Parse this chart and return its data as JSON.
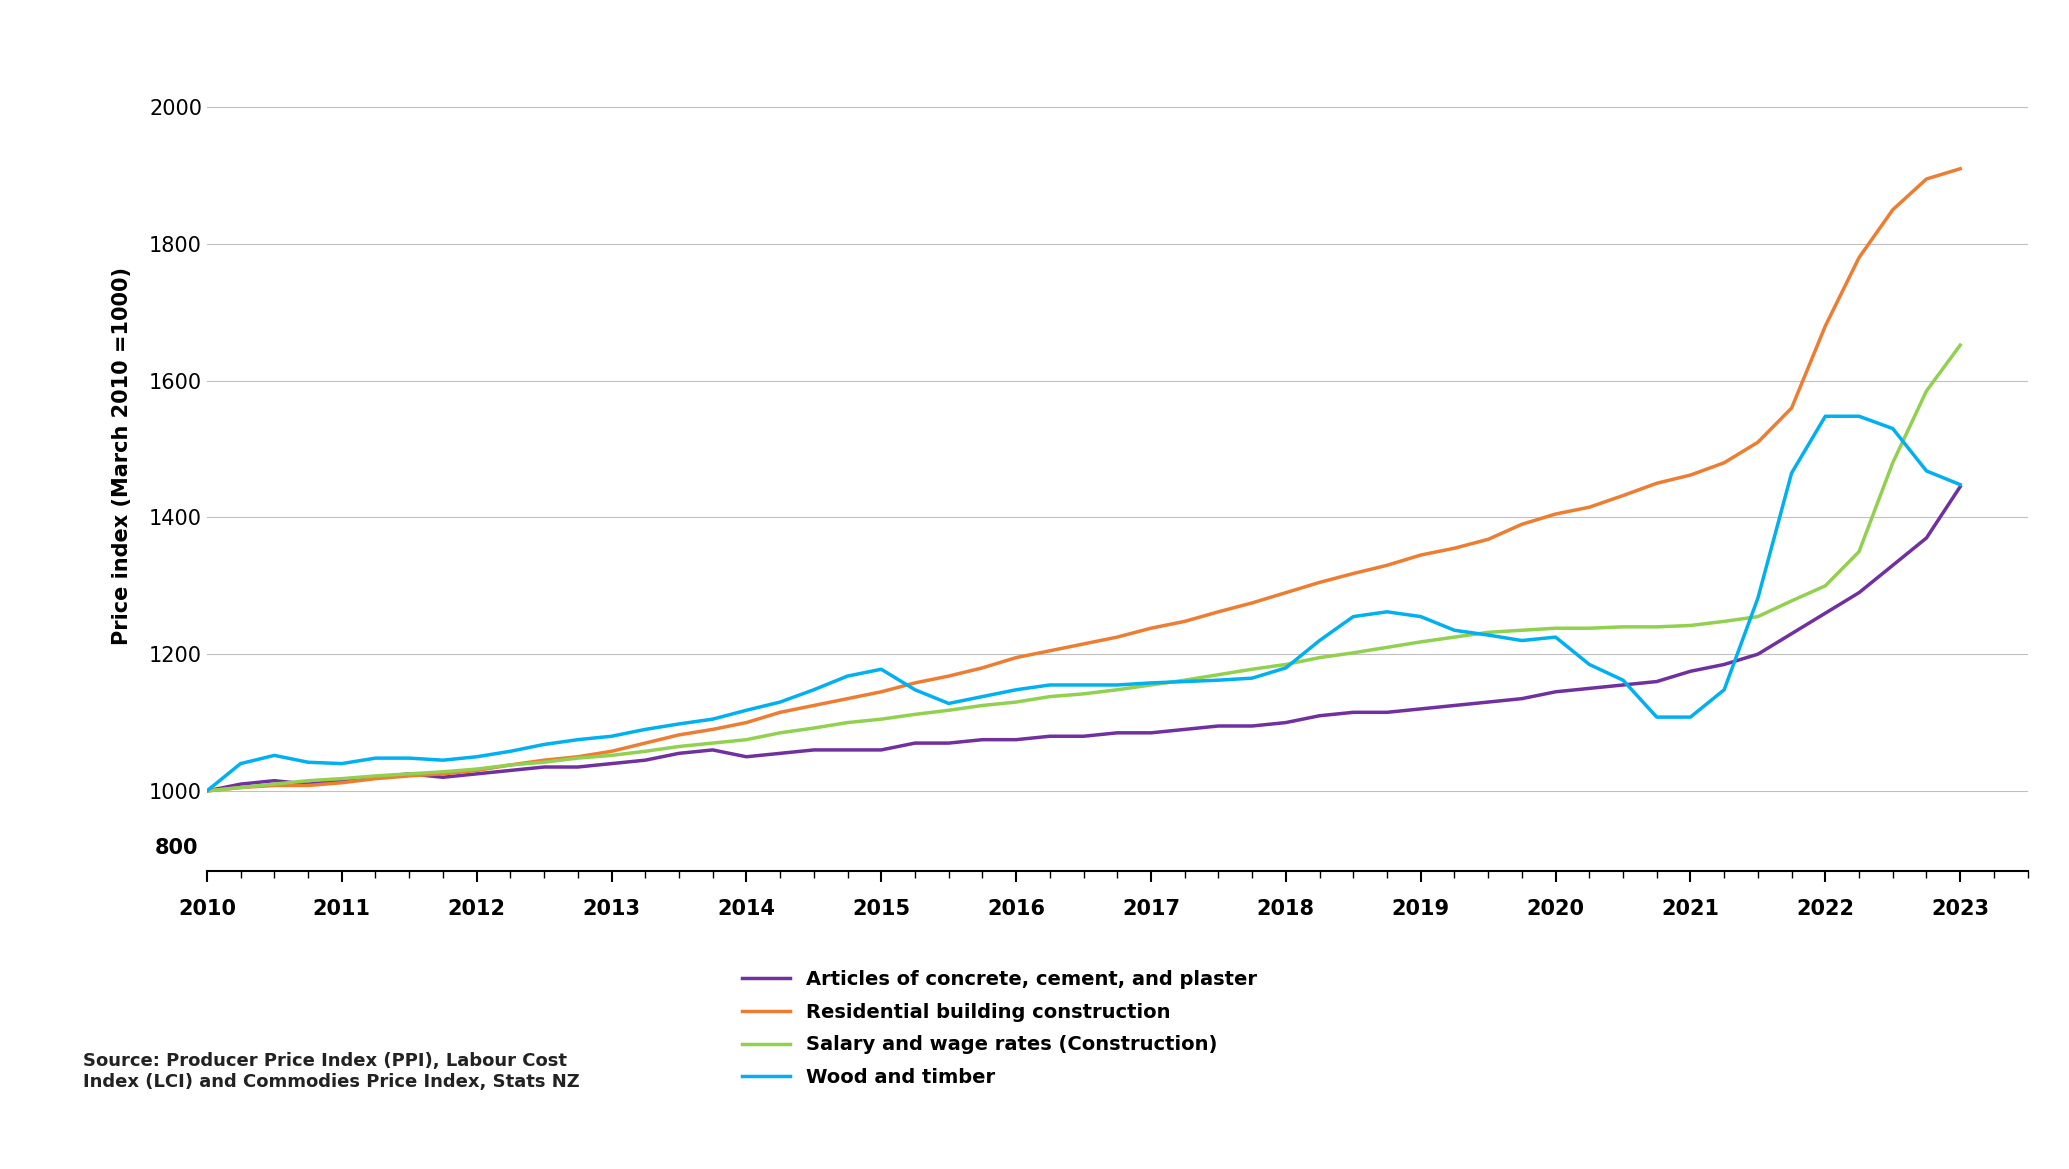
{
  "ylabel": "Price index (March 2010 =1000)",
  "source_text": "Source: Producer Price Index (PPI), Labour Cost\nIndex (LCI) and Commodies Price Index, Stats NZ",
  "ylim": [
    800,
    2000
  ],
  "plot_ylim": [
    950,
    2000
  ],
  "yticks_in_plot": [
    1000,
    1200,
    1400,
    1600,
    1800,
    2000
  ],
  "ytick_800": 800,
  "background_color": "#ffffff",
  "grid_color": "#c0c0c0",
  "series": {
    "Articles of concrete, cement, and plaster": {
      "color": "#7030a0",
      "data": {
        "2010-03": 1000,
        "2010-06": 1010,
        "2010-09": 1015,
        "2010-12": 1010,
        "2011-03": 1015,
        "2011-06": 1020,
        "2011-09": 1025,
        "2011-12": 1020,
        "2012-03": 1025,
        "2012-06": 1030,
        "2012-09": 1035,
        "2012-12": 1035,
        "2013-03": 1040,
        "2013-06": 1045,
        "2013-09": 1055,
        "2013-12": 1060,
        "2014-03": 1050,
        "2014-06": 1055,
        "2014-09": 1060,
        "2014-12": 1060,
        "2015-03": 1060,
        "2015-06": 1070,
        "2015-09": 1070,
        "2015-12": 1075,
        "2016-03": 1075,
        "2016-06": 1080,
        "2016-09": 1080,
        "2016-12": 1085,
        "2017-03": 1085,
        "2017-06": 1090,
        "2017-09": 1095,
        "2017-12": 1095,
        "2018-03": 1100,
        "2018-06": 1110,
        "2018-09": 1115,
        "2018-12": 1115,
        "2019-03": 1120,
        "2019-06": 1125,
        "2019-09": 1130,
        "2019-12": 1135,
        "2020-03": 1145,
        "2020-06": 1150,
        "2020-09": 1155,
        "2020-12": 1160,
        "2021-03": 1175,
        "2021-06": 1185,
        "2021-09": 1200,
        "2021-12": 1230,
        "2022-03": 1260,
        "2022-06": 1290,
        "2022-09": 1330,
        "2022-12": 1370,
        "2023-03": 1445
      }
    },
    "Residential building construction": {
      "color": "#ed7d31",
      "data": {
        "2010-03": 1000,
        "2010-06": 1005,
        "2010-09": 1008,
        "2010-12": 1008,
        "2011-03": 1012,
        "2011-06": 1018,
        "2011-09": 1022,
        "2011-12": 1025,
        "2012-03": 1030,
        "2012-06": 1038,
        "2012-09": 1045,
        "2012-12": 1050,
        "2013-03": 1058,
        "2013-06": 1070,
        "2013-09": 1082,
        "2013-12": 1090,
        "2014-03": 1100,
        "2014-06": 1115,
        "2014-09": 1125,
        "2014-12": 1135,
        "2015-03": 1145,
        "2015-06": 1158,
        "2015-09": 1168,
        "2015-12": 1180,
        "2016-03": 1195,
        "2016-06": 1205,
        "2016-09": 1215,
        "2016-12": 1225,
        "2017-03": 1238,
        "2017-06": 1248,
        "2017-09": 1262,
        "2017-12": 1275,
        "2018-03": 1290,
        "2018-06": 1305,
        "2018-09": 1318,
        "2018-12": 1330,
        "2019-03": 1345,
        "2019-06": 1355,
        "2019-09": 1368,
        "2019-12": 1390,
        "2020-03": 1405,
        "2020-06": 1415,
        "2020-09": 1432,
        "2020-12": 1450,
        "2021-03": 1462,
        "2021-06": 1480,
        "2021-09": 1510,
        "2021-12": 1560,
        "2022-03": 1680,
        "2022-06": 1780,
        "2022-09": 1850,
        "2022-12": 1895,
        "2023-03": 1910
      }
    },
    "Salary and wage rates (Construction)": {
      "color": "#92d050",
      "data": {
        "2010-03": 1000,
        "2010-06": 1005,
        "2010-09": 1010,
        "2010-12": 1015,
        "2011-03": 1018,
        "2011-06": 1022,
        "2011-09": 1025,
        "2011-12": 1028,
        "2012-03": 1032,
        "2012-06": 1038,
        "2012-09": 1042,
        "2012-12": 1048,
        "2013-03": 1052,
        "2013-06": 1058,
        "2013-09": 1065,
        "2013-12": 1070,
        "2014-03": 1075,
        "2014-06": 1085,
        "2014-09": 1092,
        "2014-12": 1100,
        "2015-03": 1105,
        "2015-06": 1112,
        "2015-09": 1118,
        "2015-12": 1125,
        "2016-03": 1130,
        "2016-06": 1138,
        "2016-09": 1142,
        "2016-12": 1148,
        "2017-03": 1155,
        "2017-06": 1162,
        "2017-09": 1170,
        "2017-12": 1178,
        "2018-03": 1185,
        "2018-06": 1195,
        "2018-09": 1202,
        "2018-12": 1210,
        "2019-03": 1218,
        "2019-06": 1225,
        "2019-09": 1232,
        "2019-12": 1235,
        "2020-03": 1238,
        "2020-06": 1238,
        "2020-09": 1240,
        "2020-12": 1240,
        "2021-03": 1242,
        "2021-06": 1248,
        "2021-09": 1255,
        "2021-12": 1278,
        "2022-03": 1300,
        "2022-06": 1350,
        "2022-09": 1480,
        "2022-12": 1585,
        "2023-03": 1652
      }
    },
    "Wood and timber": {
      "color": "#00b0f0",
      "data": {
        "2010-03": 1000,
        "2010-06": 1040,
        "2010-09": 1052,
        "2010-12": 1042,
        "2011-03": 1040,
        "2011-06": 1048,
        "2011-09": 1048,
        "2011-12": 1045,
        "2012-03": 1050,
        "2012-06": 1058,
        "2012-09": 1068,
        "2012-12": 1075,
        "2013-03": 1080,
        "2013-06": 1090,
        "2013-09": 1098,
        "2013-12": 1105,
        "2014-03": 1118,
        "2014-06": 1130,
        "2014-09": 1148,
        "2014-12": 1168,
        "2015-03": 1178,
        "2015-06": 1148,
        "2015-09": 1128,
        "2015-12": 1138,
        "2016-03": 1148,
        "2016-06": 1155,
        "2016-09": 1155,
        "2016-12": 1155,
        "2017-03": 1158,
        "2017-06": 1160,
        "2017-09": 1162,
        "2017-12": 1165,
        "2018-03": 1180,
        "2018-06": 1220,
        "2018-09": 1255,
        "2018-12": 1262,
        "2019-03": 1255,
        "2019-06": 1235,
        "2019-09": 1228,
        "2019-12": 1220,
        "2020-03": 1225,
        "2020-06": 1185,
        "2020-09": 1162,
        "2020-12": 1108,
        "2021-03": 1108,
        "2021-06": 1148,
        "2021-09": 1282,
        "2021-12": 1465,
        "2022-03": 1548,
        "2022-06": 1548,
        "2022-09": 1530,
        "2022-12": 1468,
        "2023-03": 1448
      }
    }
  },
  "legend_order": [
    "Articles of concrete, cement, and plaster",
    "Residential building construction",
    "Salary and wage rates (Construction)",
    "Wood and timber"
  ]
}
